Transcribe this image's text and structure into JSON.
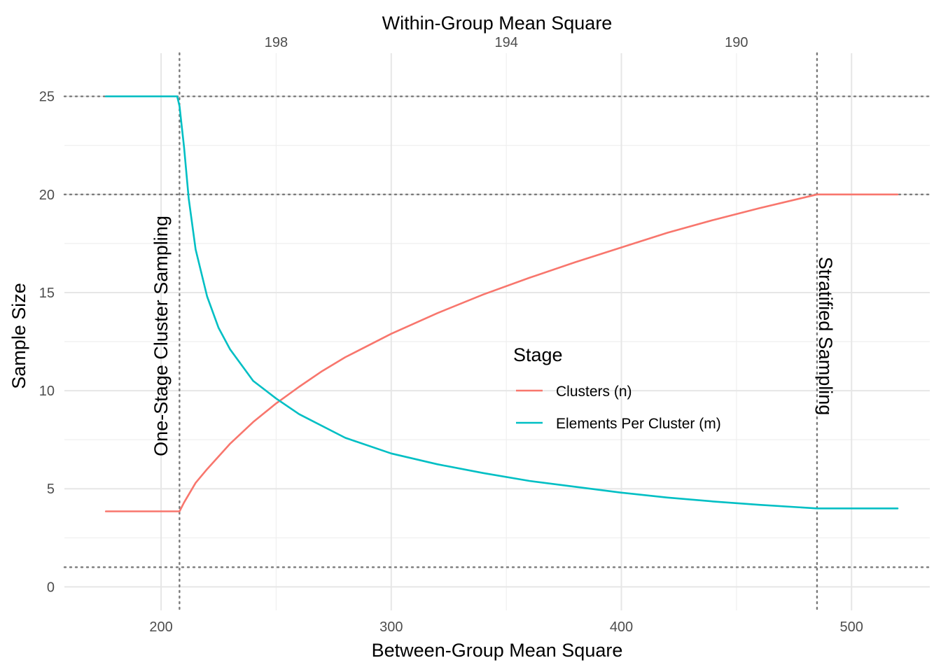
{
  "chart_data": {
    "type": "line",
    "xlabel": "Between-Group Mean Square",
    "x2label": "Within-Group Mean Square",
    "ylabel": "Sample Size",
    "xlim": [
      158,
      534
    ],
    "ylim": [
      -1.2,
      27.2
    ],
    "x_ticks": [
      "200",
      "300",
      "400",
      "500"
    ],
    "x_tick_values": [
      200,
      300,
      400,
      500
    ],
    "x_minor_ticks": [
      250,
      350,
      450
    ],
    "x2_ticks": [
      "198",
      "194",
      "190"
    ],
    "x2_tick_positions": [
      250,
      350,
      450
    ],
    "y_ticks": [
      "0",
      "5",
      "10",
      "15",
      "20",
      "25"
    ],
    "y_tick_values": [
      0,
      5,
      10,
      15,
      20,
      25
    ],
    "y_minor_ticks": [
      2.5,
      7.5,
      12.5,
      17.5,
      22.5
    ],
    "grid": true,
    "legend": {
      "title": "Stage",
      "placement": "center-right",
      "items": [
        "Clusters (n)",
        "Elements Per Cluster (m)"
      ]
    },
    "reference_lines": {
      "vertical": [
        208,
        485
      ],
      "horizontal": [
        25,
        20,
        1
      ]
    },
    "annotations": [
      "One-Stage Cluster Sampling",
      "Stratified Sampling"
    ],
    "series": [
      {
        "name": "Clusters (n)",
        "color": "#F8766D",
        "x": [
          176,
          208,
          210,
          215,
          220,
          230,
          240,
          250,
          260,
          270,
          280,
          300,
          320,
          340,
          360,
          380,
          400,
          420,
          440,
          460,
          485,
          520
        ],
        "y": [
          3.85,
          3.85,
          4.3,
          5.3,
          6.0,
          7.3,
          8.4,
          9.35,
          10.2,
          11.0,
          11.7,
          12.9,
          13.95,
          14.9,
          15.75,
          16.55,
          17.3,
          18.05,
          18.7,
          19.3,
          20.0,
          20.0
        ]
      },
      {
        "name": "Elements Per Cluster (m)",
        "color": "#00BFC4",
        "x": [
          176,
          207,
          208,
          210,
          212,
          215,
          220,
          225,
          230,
          240,
          250,
          260,
          280,
          300,
          320,
          340,
          360,
          380,
          400,
          420,
          440,
          460,
          485,
          520
        ],
        "y": [
          25,
          25,
          24.5,
          22.4,
          19.8,
          17.2,
          14.8,
          13.2,
          12.1,
          10.5,
          9.6,
          8.8,
          7.6,
          6.8,
          6.25,
          5.8,
          5.4,
          5.1,
          4.8,
          4.55,
          4.35,
          4.18,
          4.0,
          4.0
        ]
      }
    ]
  }
}
